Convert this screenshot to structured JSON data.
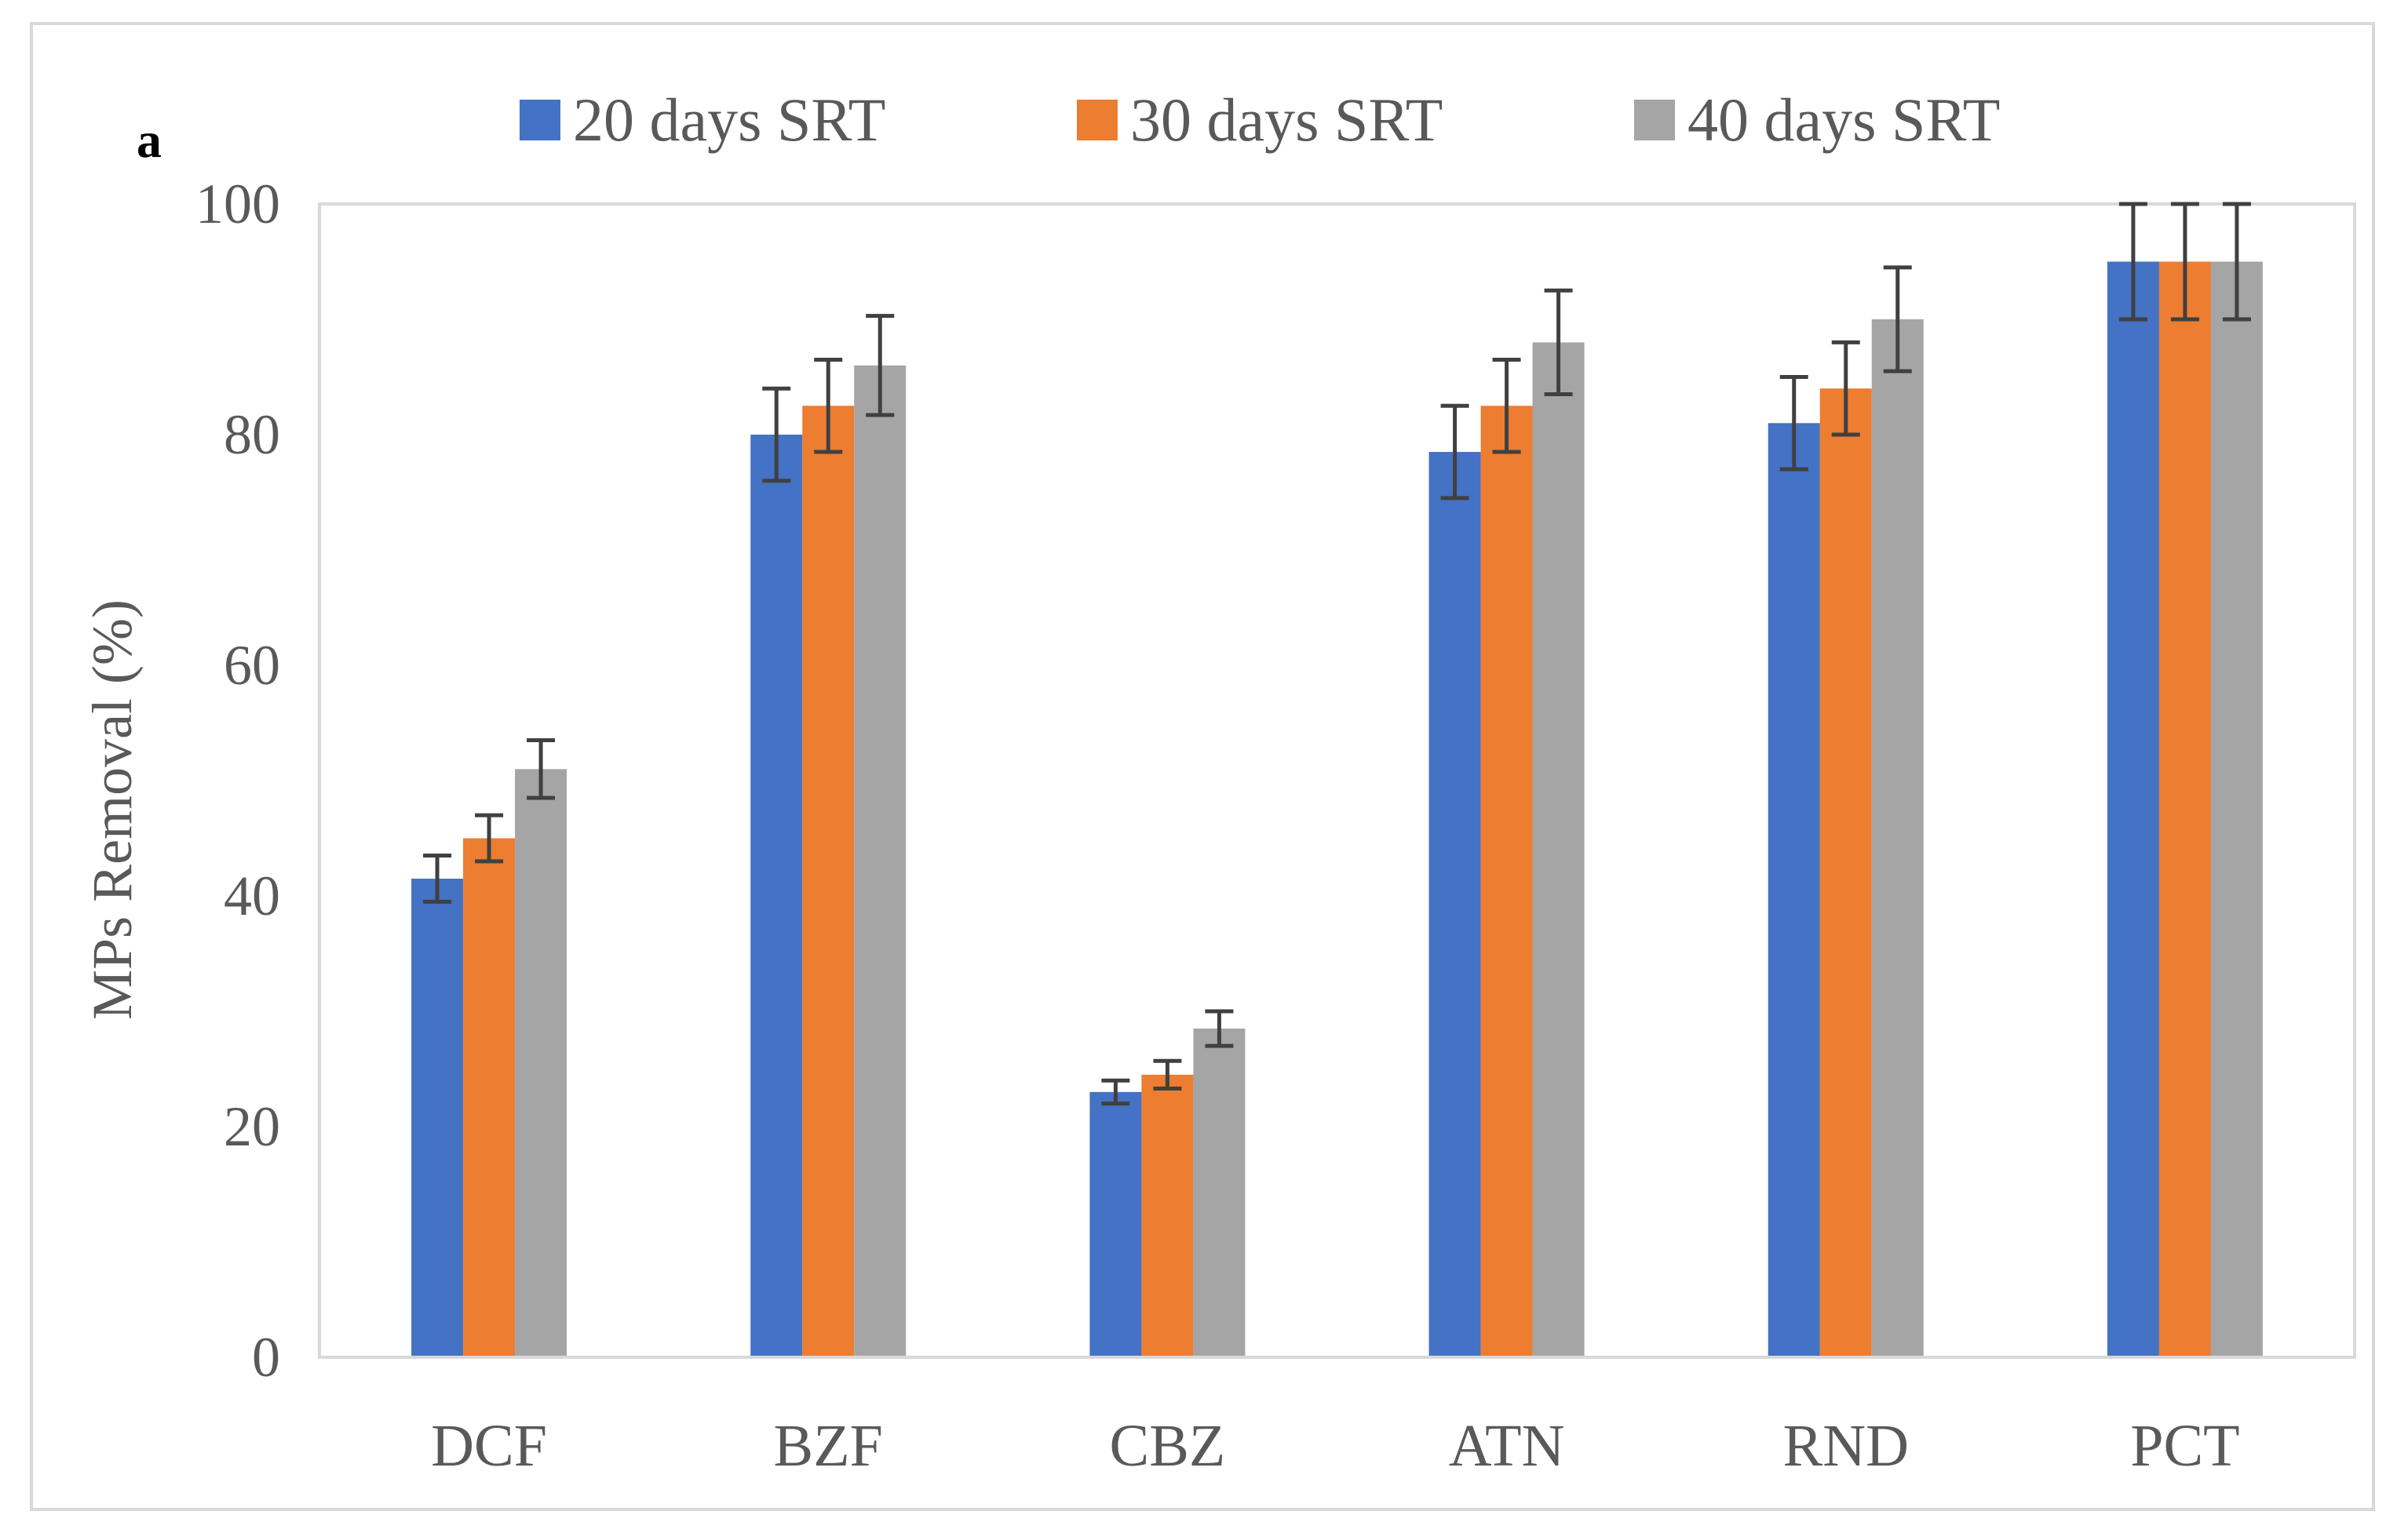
{
  "panel_label": "a",
  "chart_data": {
    "type": "bar",
    "title": "",
    "xlabel": "",
    "ylabel": "MPs Removal (%)",
    "ylim": [
      0,
      100
    ],
    "yticks": [
      0,
      20,
      40,
      60,
      80,
      100
    ],
    "grid": false,
    "legend_position": "top",
    "categories": [
      "DCF",
      "BZF",
      "CBZ",
      "ATN",
      "RND",
      "PCT"
    ],
    "series": [
      {
        "name": "20 days SRT",
        "color": "#4472C4",
        "values": [
          41.5,
          80,
          23,
          78.5,
          81,
          95
        ],
        "errors": [
          2,
          4,
          1,
          4,
          4,
          5
        ]
      },
      {
        "name": "30 days SRT",
        "color": "#ED7D31",
        "values": [
          45,
          82.5,
          24.5,
          82.5,
          84,
          95
        ],
        "errors": [
          2,
          4,
          1.2,
          4,
          4,
          5
        ]
      },
      {
        "name": "40 days SRT",
        "color": "#A5A5A5",
        "values": [
          51,
          86,
          28.5,
          88,
          90,
          95
        ],
        "errors": [
          2.5,
          4.3,
          1.5,
          4.5,
          4.5,
          5
        ]
      }
    ],
    "error_bar_color": "#404040",
    "axis_color": "#d9d9d9"
  }
}
